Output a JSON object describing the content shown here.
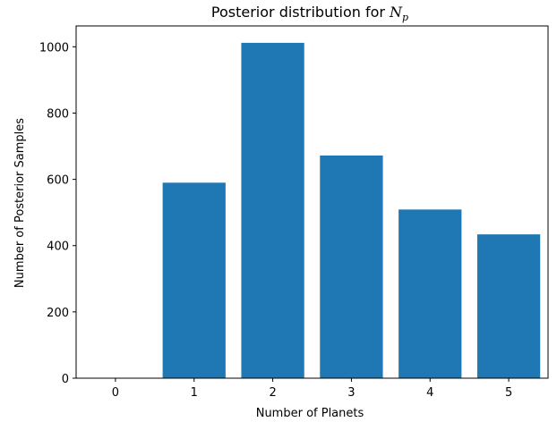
{
  "chart_data": {
    "type": "bar",
    "title": "Posterior distribution for N",
    "title_parts": {
      "text": "Posterior distribution for ",
      "variable": "N",
      "subscript": "p"
    },
    "xlabel": "Number of Planets",
    "ylabel": "Number of Posterior Samples",
    "categories": [
      "0",
      "1",
      "2",
      "3",
      "4",
      "5"
    ],
    "values": [
      0,
      590,
      1012,
      672,
      509,
      434
    ],
    "ylim": [
      0,
      1063
    ],
    "yticks": [
      0,
      200,
      400,
      600,
      800,
      1000
    ],
    "xlim": [
      -0.5,
      5.5
    ],
    "bar_width": 0.8,
    "bar_color": "#1f77b4",
    "grid": false,
    "legend": "none"
  }
}
